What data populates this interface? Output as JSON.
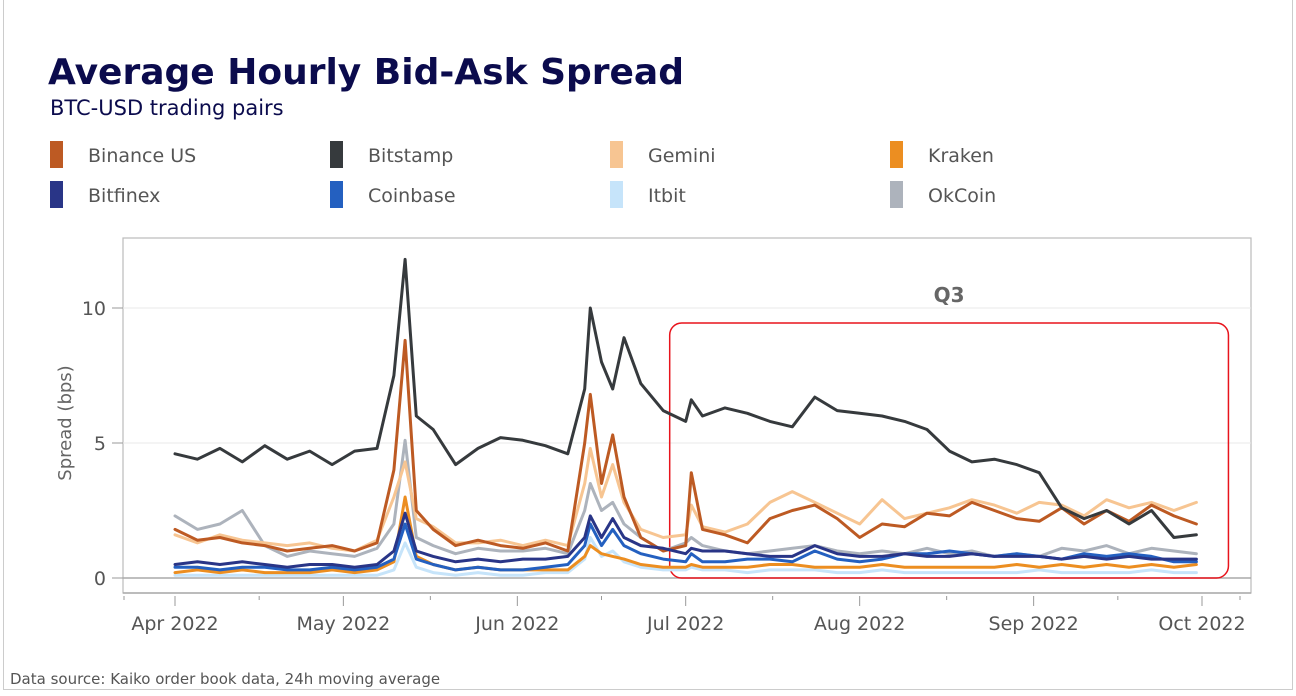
{
  "chart_data": {
    "type": "line",
    "title": "Average Hourly Bid-Ask Spread",
    "subtitle": "BTC-USD trading pairs",
    "ylabel": "Spread (bps)",
    "xlabel": "",
    "ylim": [
      -1.2,
      12.5
    ],
    "yticks": [
      0,
      5,
      10
    ],
    "xticks": [
      "Apr 2022",
      "May 2022",
      "Jun 2022",
      "Jul 2022",
      "Aug 2022",
      "Sep 2022",
      "Oct 2022"
    ],
    "xtick_dates": [
      "2022-04-01",
      "2022-05-01",
      "2022-06-01",
      "2022-07-01",
      "2022-08-01",
      "2022-09-01",
      "2022-10-01"
    ],
    "grid": "horizontal",
    "legend_position": "top",
    "source": "Data source: Kaiko order book data, 24h moving average",
    "annotation": {
      "label": "Q3",
      "from": "2022-07-01",
      "to": "2022-10-05",
      "color": "#e8141c"
    },
    "x": [
      "2022-04-01",
      "2022-04-05",
      "2022-04-09",
      "2022-04-13",
      "2022-04-17",
      "2022-04-21",
      "2022-04-25",
      "2022-04-29",
      "2022-05-03",
      "2022-05-07",
      "2022-05-10",
      "2022-05-12",
      "2022-05-14",
      "2022-05-17",
      "2022-05-21",
      "2022-05-25",
      "2022-05-29",
      "2022-06-02",
      "2022-06-06",
      "2022-06-10",
      "2022-06-13",
      "2022-06-14",
      "2022-06-16",
      "2022-06-18",
      "2022-06-20",
      "2022-06-23",
      "2022-06-27",
      "2022-07-01",
      "2022-07-02",
      "2022-07-04",
      "2022-07-08",
      "2022-07-12",
      "2022-07-16",
      "2022-07-20",
      "2022-07-24",
      "2022-07-28",
      "2022-08-01",
      "2022-08-05",
      "2022-08-09",
      "2022-08-13",
      "2022-08-17",
      "2022-08-21",
      "2022-08-25",
      "2022-08-29",
      "2022-09-02",
      "2022-09-06",
      "2022-09-10",
      "2022-09-14",
      "2022-09-18",
      "2022-09-22",
      "2022-09-26",
      "2022-09-30"
    ],
    "series": [
      {
        "name": "Binance US",
        "color": "#bd5a23",
        "values": [
          1.8,
          1.4,
          1.5,
          1.3,
          1.2,
          1.0,
          1.1,
          1.2,
          1.0,
          1.3,
          4.0,
          8.8,
          2.5,
          1.8,
          1.2,
          1.4,
          1.2,
          1.1,
          1.3,
          1.0,
          5.0,
          6.8,
          3.5,
          5.3,
          3.0,
          1.5,
          1.0,
          1.2,
          3.9,
          1.8,
          1.6,
          1.3,
          2.2,
          2.5,
          2.7,
          2.2,
          1.5,
          2.0,
          1.9,
          2.4,
          2.3,
          2.8,
          2.5,
          2.2,
          2.1,
          2.6,
          2.0,
          2.5,
          2.1,
          2.7,
          2.3,
          2.0
        ]
      },
      {
        "name": "Bitstamp",
        "color": "#363a3d",
        "values": [
          4.6,
          4.4,
          4.8,
          4.3,
          4.9,
          4.4,
          4.7,
          4.2,
          4.7,
          4.8,
          7.5,
          11.8,
          6.0,
          5.5,
          4.2,
          4.8,
          5.2,
          5.1,
          4.9,
          4.6,
          7.0,
          10.0,
          8.0,
          7.0,
          8.9,
          7.2,
          6.2,
          5.8,
          6.6,
          6.0,
          6.3,
          6.1,
          5.8,
          5.6,
          6.7,
          6.2,
          6.1,
          6.0,
          5.8,
          5.5,
          4.7,
          4.3,
          4.4,
          4.2,
          3.9,
          2.6,
          2.2,
          2.5,
          2.0,
          2.5,
          1.5,
          1.6
        ]
      },
      {
        "name": "Gemini",
        "color": "#f7c592",
        "values": [
          1.6,
          1.3,
          1.6,
          1.4,
          1.3,
          1.2,
          1.3,
          1.1,
          1.0,
          1.4,
          3.0,
          4.3,
          2.2,
          1.9,
          1.3,
          1.3,
          1.4,
          1.2,
          1.4,
          1.2,
          3.5,
          4.8,
          3.0,
          4.2,
          2.8,
          1.8,
          1.5,
          1.6,
          2.7,
          1.9,
          1.7,
          2.0,
          2.8,
          3.2,
          2.8,
          2.4,
          2.0,
          2.9,
          2.2,
          2.4,
          2.6,
          2.9,
          2.7,
          2.4,
          2.8,
          2.7,
          2.3,
          2.9,
          2.6,
          2.8,
          2.5,
          2.8
        ]
      },
      {
        "name": "Kraken",
        "color": "#ec8e21",
        "values": [
          0.2,
          0.3,
          0.2,
          0.3,
          0.2,
          0.2,
          0.2,
          0.3,
          0.2,
          0.3,
          0.6,
          3.0,
          0.8,
          0.5,
          0.3,
          0.4,
          0.3,
          0.3,
          0.3,
          0.3,
          0.8,
          1.2,
          0.9,
          0.8,
          0.7,
          0.5,
          0.4,
          0.4,
          0.5,
          0.4,
          0.4,
          0.4,
          0.5,
          0.5,
          0.4,
          0.4,
          0.4,
          0.5,
          0.4,
          0.4,
          0.4,
          0.4,
          0.4,
          0.5,
          0.4,
          0.5,
          0.4,
          0.5,
          0.4,
          0.5,
          0.4,
          0.5
        ]
      },
      {
        "name": "Bitfinex",
        "color": "#293587",
        "values": [
          0.5,
          0.6,
          0.5,
          0.6,
          0.5,
          0.4,
          0.5,
          0.5,
          0.4,
          0.5,
          1.0,
          2.4,
          1.0,
          0.8,
          0.6,
          0.7,
          0.6,
          0.7,
          0.7,
          0.8,
          1.5,
          2.3,
          1.5,
          2.2,
          1.5,
          1.2,
          1.1,
          0.9,
          1.1,
          1.0,
          1.0,
          0.9,
          0.8,
          0.8,
          1.2,
          0.9,
          0.8,
          0.8,
          0.9,
          0.8,
          0.8,
          0.9,
          0.8,
          0.8,
          0.8,
          0.7,
          0.8,
          0.7,
          0.8,
          0.7,
          0.7,
          0.7
        ]
      },
      {
        "name": "Coinbase",
        "color": "#2460c0",
        "values": [
          0.4,
          0.4,
          0.3,
          0.4,
          0.4,
          0.3,
          0.3,
          0.4,
          0.3,
          0.4,
          0.7,
          2.0,
          0.7,
          0.5,
          0.3,
          0.4,
          0.3,
          0.3,
          0.4,
          0.5,
          1.2,
          2.0,
          1.2,
          1.8,
          1.2,
          0.9,
          0.7,
          0.6,
          0.9,
          0.6,
          0.6,
          0.7,
          0.7,
          0.6,
          1.0,
          0.7,
          0.6,
          0.7,
          0.9,
          0.9,
          1.0,
          0.9,
          0.8,
          0.9,
          0.8,
          0.7,
          0.9,
          0.8,
          0.9,
          0.8,
          0.6,
          0.6
        ]
      },
      {
        "name": "Itbit",
        "color": "#c6e4fa",
        "values": [
          0.1,
          0.1,
          0.1,
          0.1,
          0.1,
          0.1,
          0.1,
          0.1,
          0.1,
          0.1,
          0.3,
          1.3,
          0.4,
          0.2,
          0.1,
          0.2,
          0.1,
          0.1,
          0.2,
          0.2,
          0.7,
          1.5,
          0.8,
          1.0,
          0.6,
          0.4,
          0.3,
          0.3,
          0.4,
          0.3,
          0.3,
          0.2,
          0.3,
          0.3,
          0.3,
          0.2,
          0.2,
          0.3,
          0.2,
          0.2,
          0.2,
          0.2,
          0.2,
          0.2,
          0.3,
          0.2,
          0.2,
          0.2,
          0.2,
          0.3,
          0.2,
          0.2
        ]
      },
      {
        "name": "OkCoin",
        "color": "#adb3bc",
        "values": [
          2.3,
          1.8,
          2.0,
          2.5,
          1.2,
          0.8,
          1.0,
          0.9,
          0.8,
          1.1,
          2.0,
          5.1,
          1.5,
          1.2,
          0.9,
          1.1,
          1.0,
          1.0,
          1.1,
          0.9,
          2.5,
          3.5,
          2.5,
          2.8,
          2.0,
          1.5,
          1.0,
          1.3,
          1.5,
          1.2,
          1.0,
          0.9,
          1.0,
          1.1,
          1.2,
          1.0,
          0.9,
          1.0,
          0.9,
          1.1,
          0.9,
          1.0,
          0.8,
          0.9,
          0.8,
          1.1,
          1.0,
          1.2,
          0.9,
          1.1,
          1.0,
          0.9
        ]
      }
    ]
  }
}
